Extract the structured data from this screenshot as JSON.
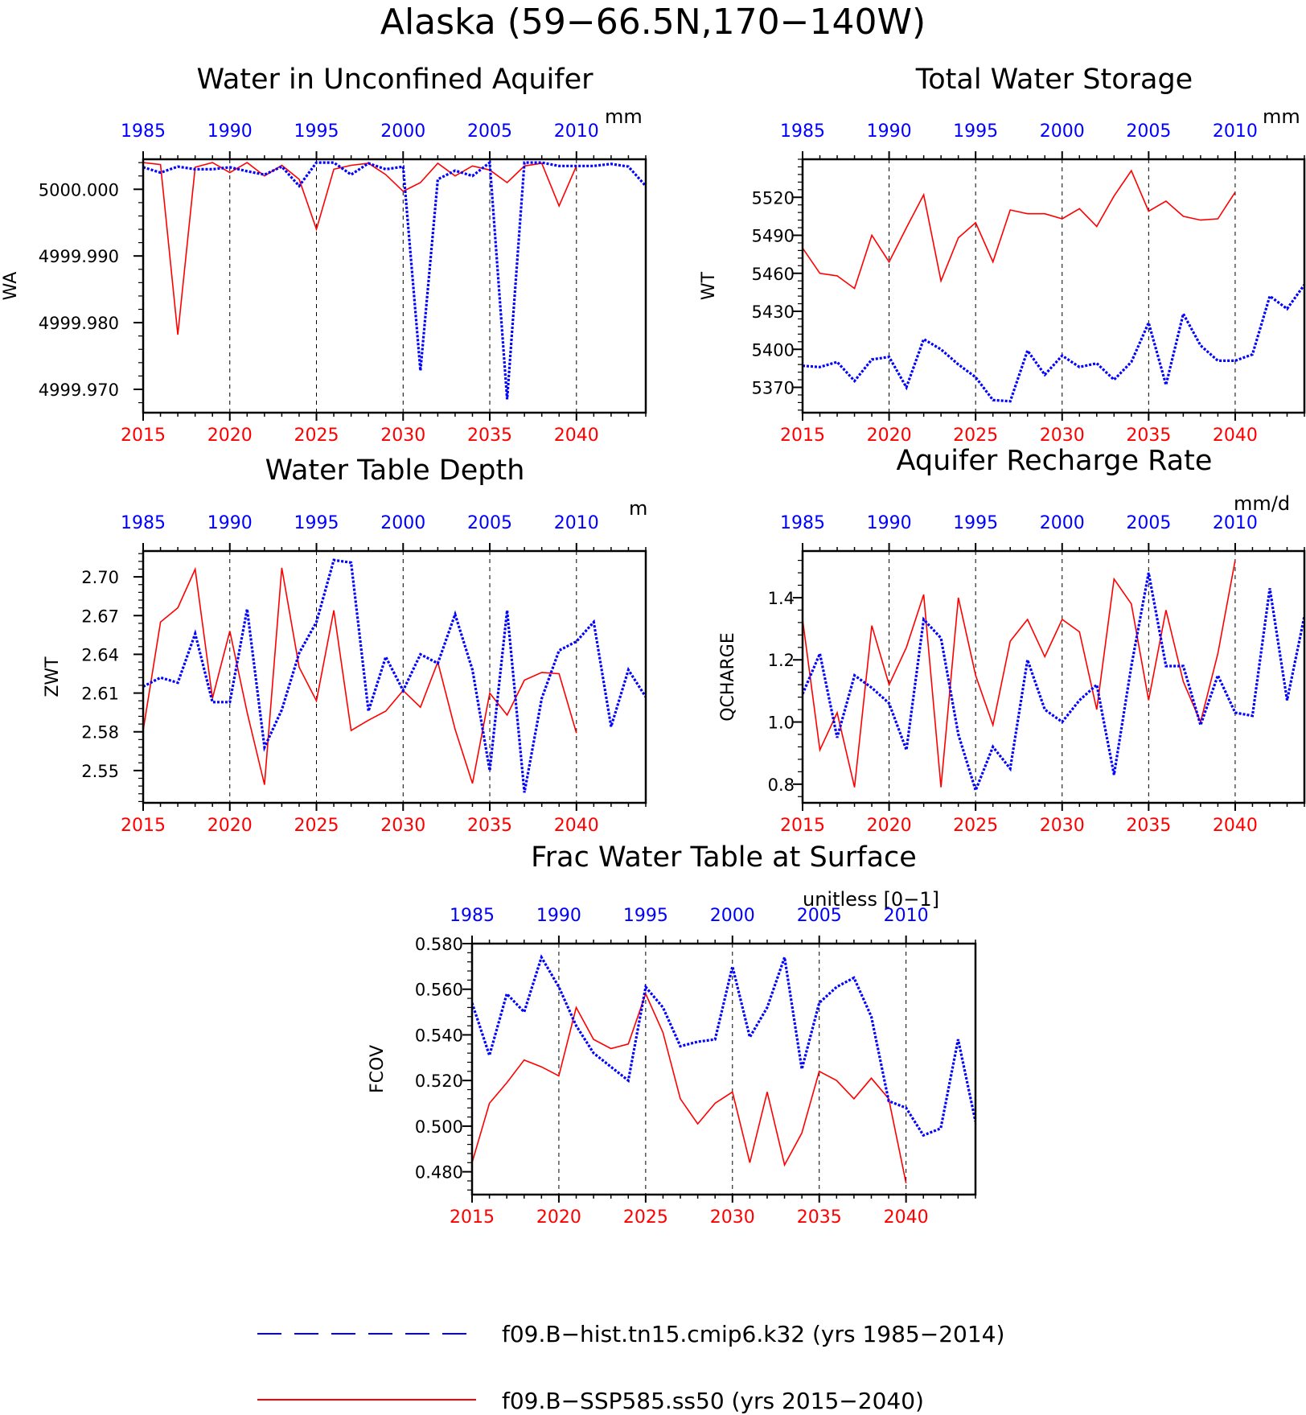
{
  "title": "Alaska (59−66.5N,170−140W)",
  "colors": {
    "hist": "#0000ff",
    "ssp": "#ff0000",
    "axis": "#000000"
  },
  "legend": [
    {
      "label": "f09.B−hist.tn15.cmip6.k32 (yrs 1985−2014)",
      "series": "hist"
    },
    {
      "label": "f09.B−SSP585.ss50 (yrs 2015−2040)",
      "series": "ssp"
    }
  ],
  "chart_data": [
    {
      "id": "wa",
      "type": "line",
      "title": "Water in Unconfined Aquifer",
      "units": "mm",
      "ylabel": "WA",
      "yticks": [
        5000.0,
        4999.99,
        4999.98,
        4999.97
      ],
      "ytick_labels": [
        "5000.000",
        "4999.990",
        "4999.980",
        "4999.970"
      ],
      "ylim": [
        4999.9665,
        5000.0045
      ],
      "x_bottom_ticks": [
        "2015",
        "2020",
        "2025",
        "2030",
        "2035",
        "2040"
      ],
      "x_top_ticks": [
        "1985",
        "1990",
        "1995",
        "2000",
        "2005",
        "2010"
      ],
      "series": [
        {
          "key": "ssp",
          "x": [
            2015,
            2016,
            2017,
            2018,
            2019,
            2020,
            2021,
            2022,
            2023,
            2024,
            2025,
            2026,
            2027,
            2028,
            2029,
            2030,
            2031,
            2032,
            2033,
            2034,
            2035,
            2036,
            2037,
            2038,
            2039,
            2040
          ],
          "values": [
            5000.004,
            5000.0037,
            4999.9782,
            5000.0033,
            5000.004,
            5000.0025,
            5000.004,
            5000.002,
            5000.0036,
            5000.0015,
            4999.994,
            5000.003,
            5000.0036,
            5000.0039,
            5000.0022,
            4999.9997,
            5000.001,
            5000.0039,
            5000.002,
            5000.0035,
            5000.0029,
            5000.001,
            5000.0035,
            5000.0039,
            4999.9975,
            5000.0035
          ]
        },
        {
          "key": "hist",
          "x": [
            1985,
            1986,
            1987,
            1988,
            1989,
            1990,
            1991,
            1992,
            1993,
            1994,
            1995,
            1996,
            1997,
            1998,
            1999,
            2000,
            2001,
            2002,
            2003,
            2004,
            2005,
            2006,
            2007,
            2008,
            2009,
            2010,
            2011,
            2012,
            2013,
            2014
          ],
          "values": [
            5000.0033,
            5000.0025,
            5000.0034,
            5000.003,
            5000.003,
            5000.0033,
            5000.0027,
            5000.0022,
            5000.0034,
            5000.0005,
            5000.004,
            5000.004,
            5000.0022,
            5000.0039,
            5000.003,
            5000.0034,
            4999.9728,
            5000.0015,
            5000.0028,
            5000.002,
            5000.004,
            4999.9685,
            5000.004,
            5000.004,
            5000.0035,
            5000.0035,
            5000.0035,
            5000.0038,
            5000.0034,
            5000.0005
          ]
        }
      ]
    },
    {
      "id": "wt",
      "type": "line",
      "title": "Total Water Storage",
      "units": "mm",
      "ylabel": "WT",
      "yticks": [
        5520,
        5490,
        5460,
        5430,
        5400,
        5370
      ],
      "ytick_labels": [
        "5520",
        "5490",
        "5460",
        "5430",
        "5400",
        "5370"
      ],
      "ylim": [
        5350,
        5550
      ],
      "x_bottom_ticks": [
        "2015",
        "2020",
        "2025",
        "2030",
        "2035",
        "2040"
      ],
      "x_top_ticks": [
        "1985",
        "1990",
        "1995",
        "2000",
        "2005",
        "2010"
      ],
      "series": [
        {
          "key": "ssp",
          "x": [
            2015,
            2016,
            2017,
            2018,
            2019,
            2020,
            2021,
            2022,
            2023,
            2024,
            2025,
            2026,
            2027,
            2028,
            2029,
            2030,
            2031,
            2032,
            2033,
            2034,
            2035,
            2036,
            2037,
            2038,
            2039,
            2040
          ],
          "values": [
            5480,
            5460,
            5458,
            5448,
            5490,
            5469,
            5496,
            5522,
            5454,
            5488,
            5500,
            5469,
            5510,
            5507,
            5507,
            5503,
            5511,
            5497,
            5521,
            5541,
            5509,
            5517,
            5505,
            5502,
            5503,
            5524
          ]
        },
        {
          "key": "hist",
          "x": [
            1985,
            1986,
            1987,
            1988,
            1989,
            1990,
            1991,
            1992,
            1993,
            1994,
            1995,
            1996,
            1997,
            1998,
            1999,
            2000,
            2001,
            2002,
            2003,
            2004,
            2005,
            2006,
            2007,
            2008,
            2009,
            2010,
            2011,
            2012,
            2013,
            2014
          ],
          "values": [
            5387,
            5386,
            5390,
            5375,
            5392,
            5394,
            5370,
            5408,
            5400,
            5388,
            5378,
            5360,
            5359,
            5399,
            5380,
            5395,
            5386,
            5389,
            5376,
            5390,
            5421,
            5372,
            5428,
            5403,
            5391,
            5391,
            5396,
            5442,
            5432,
            5451
          ]
        }
      ]
    },
    {
      "id": "zwt",
      "type": "line",
      "title": "Water Table Depth",
      "units": "m",
      "ylabel": "ZWT",
      "yticks": [
        2.7,
        2.67,
        2.64,
        2.61,
        2.58,
        2.55
      ],
      "ytick_labels": [
        "2.70",
        "2.67",
        "2.64",
        "2.61",
        "2.58",
        "2.55"
      ],
      "ylim": [
        2.525,
        2.72
      ],
      "x_bottom_ticks": [
        "2015",
        "2020",
        "2025",
        "2030",
        "2035",
        "2040"
      ],
      "x_top_ticks": [
        "1985",
        "1990",
        "1995",
        "2000",
        "2005",
        "2010"
      ],
      "series": [
        {
          "key": "ssp",
          "x": [
            2015,
            2016,
            2017,
            2018,
            2019,
            2020,
            2021,
            2022,
            2023,
            2024,
            2025,
            2026,
            2027,
            2028,
            2029,
            2030,
            2031,
            2032,
            2033,
            2034,
            2035,
            2036,
            2037,
            2038,
            2039,
            2040
          ],
          "values": [
            2.581,
            2.665,
            2.676,
            2.706,
            2.606,
            2.658,
            2.595,
            2.539,
            2.707,
            2.63,
            2.604,
            2.674,
            2.581,
            2.589,
            2.596,
            2.612,
            2.599,
            2.634,
            2.582,
            2.54,
            2.61,
            2.593,
            2.62,
            2.626,
            2.625,
            2.579
          ]
        },
        {
          "key": "hist",
          "x": [
            1985,
            1986,
            1987,
            1988,
            1989,
            1990,
            1991,
            1992,
            1993,
            1994,
            1995,
            1996,
            1997,
            1998,
            1999,
            2000,
            2001,
            2002,
            2003,
            2004,
            2005,
            2006,
            2007,
            2008,
            2009,
            2010,
            2011,
            2012,
            2013,
            2014
          ],
          "values": [
            2.615,
            2.622,
            2.618,
            2.656,
            2.603,
            2.603,
            2.675,
            2.568,
            2.597,
            2.641,
            2.665,
            2.713,
            2.711,
            2.596,
            2.638,
            2.612,
            2.64,
            2.633,
            2.671,
            2.628,
            2.55,
            2.674,
            2.533,
            2.606,
            2.643,
            2.65,
            2.665,
            2.584,
            2.628,
            2.607
          ]
        }
      ]
    },
    {
      "id": "qcharge",
      "type": "line",
      "title": "Aquifer Recharge Rate",
      "units": "mm/d",
      "ylabel": "QCHARGE",
      "yticks": [
        1.4,
        1.2,
        1.0,
        0.8
      ],
      "ytick_labels": [
        "1.4",
        "1.2",
        "1.0",
        "0.8"
      ],
      "ylim": [
        0.74,
        1.55
      ],
      "x_bottom_ticks": [
        "2015",
        "2020",
        "2025",
        "2030",
        "2035",
        "2040"
      ],
      "x_top_ticks": [
        "1985",
        "1990",
        "1995",
        "2000",
        "2005",
        "2010"
      ],
      "series": [
        {
          "key": "ssp",
          "x": [
            2015,
            2016,
            2017,
            2018,
            2019,
            2020,
            2021,
            2022,
            2023,
            2024,
            2025,
            2026,
            2027,
            2028,
            2029,
            2030,
            2031,
            2032,
            2033,
            2034,
            2035,
            2036,
            2037,
            2038,
            2039,
            2040
          ],
          "values": [
            1.33,
            0.91,
            1.03,
            0.79,
            1.31,
            1.12,
            1.24,
            1.41,
            0.79,
            1.4,
            1.15,
            0.99,
            1.26,
            1.33,
            1.21,
            1.33,
            1.29,
            1.04,
            1.46,
            1.38,
            1.07,
            1.36,
            1.13,
            1.0,
            1.22,
            1.52
          ]
        },
        {
          "key": "hist",
          "x": [
            1985,
            1986,
            1987,
            1988,
            1989,
            1990,
            1991,
            1992,
            1993,
            1994,
            1995,
            1996,
            1997,
            1998,
            1999,
            2000,
            2001,
            2002,
            2003,
            2004,
            2005,
            2006,
            2007,
            2008,
            2009,
            2010,
            2011,
            2012,
            2013,
            2014
          ],
          "values": [
            1.09,
            1.22,
            0.95,
            1.15,
            1.11,
            1.06,
            0.91,
            1.33,
            1.27,
            0.96,
            0.78,
            0.92,
            0.85,
            1.2,
            1.04,
            1.0,
            1.07,
            1.12,
            0.83,
            1.18,
            1.48,
            1.18,
            1.18,
            0.99,
            1.15,
            1.03,
            1.02,
            1.43,
            1.07,
            1.34
          ]
        }
      ]
    },
    {
      "id": "fcov",
      "type": "line",
      "title": "Frac Water Table at Surface",
      "units": "unitless [0−1]",
      "ylabel": "FCOV",
      "yticks": [
        0.58,
        0.56,
        0.54,
        0.52,
        0.5,
        0.48
      ],
      "ytick_labels": [
        "0.580",
        "0.560",
        "0.540",
        "0.520",
        "0.500",
        "0.480"
      ],
      "ylim": [
        0.47,
        0.58
      ],
      "x_bottom_ticks": [
        "2015",
        "2020",
        "2025",
        "2030",
        "2035",
        "2040"
      ],
      "x_top_ticks": [
        "1985",
        "1990",
        "1995",
        "2000",
        "2005",
        "2010"
      ],
      "series": [
        {
          "key": "ssp",
          "x": [
            2015,
            2016,
            2017,
            2018,
            2019,
            2020,
            2021,
            2022,
            2023,
            2024,
            2025,
            2026,
            2027,
            2028,
            2029,
            2030,
            2031,
            2032,
            2033,
            2034,
            2035,
            2036,
            2037,
            2038,
            2039,
            2040
          ],
          "values": [
            0.484,
            0.51,
            0.519,
            0.529,
            0.526,
            0.522,
            0.552,
            0.538,
            0.534,
            0.536,
            0.558,
            0.541,
            0.512,
            0.501,
            0.51,
            0.515,
            0.484,
            0.515,
            0.483,
            0.497,
            0.524,
            0.52,
            0.512,
            0.521,
            0.512,
            0.475
          ]
        },
        {
          "key": "hist",
          "x": [
            1985,
            1986,
            1987,
            1988,
            1989,
            1990,
            1991,
            1992,
            1993,
            1994,
            1995,
            1996,
            1997,
            1998,
            1999,
            2000,
            2001,
            2002,
            2003,
            2004,
            2005,
            2006,
            2007,
            2008,
            2009,
            2010,
            2011,
            2012,
            2013,
            2014
          ],
          "values": [
            0.554,
            0.531,
            0.558,
            0.55,
            0.574,
            0.561,
            0.544,
            0.532,
            0.526,
            0.52,
            0.561,
            0.552,
            0.535,
            0.537,
            0.538,
            0.57,
            0.539,
            0.552,
            0.574,
            0.525,
            0.554,
            0.561,
            0.565,
            0.548,
            0.511,
            0.508,
            0.496,
            0.499,
            0.538,
            0.502
          ]
        }
      ]
    }
  ]
}
